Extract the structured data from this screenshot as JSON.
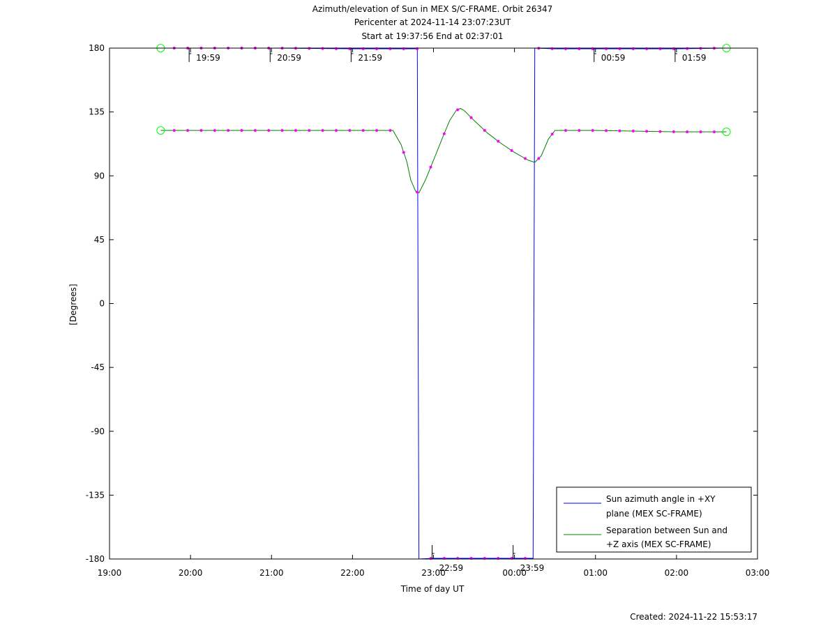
{
  "chart_data": {
    "type": "line",
    "title_lines": [
      "Azimuth/elevation of Sun in MEX S/C-FRAME.  Orbit 26347",
      "Pericenter at 2024-11-14 23:07:23UT",
      "Start at 19:37:56 End at 02:37:01"
    ],
    "xlabel": "Time of day UT",
    "ylabel": "[Degrees]",
    "footer": "Created: 2024-11-22 15:53:17",
    "x_unit": "hours after 19:00 UT",
    "xlim": [
      0,
      8
    ],
    "ylim": [
      -180,
      180
    ],
    "x_ticks": [
      {
        "v": 0,
        "label": "19:00"
      },
      {
        "v": 1,
        "label": "20:00"
      },
      {
        "v": 2,
        "label": "21:00"
      },
      {
        "v": 3,
        "label": "22:00"
      },
      {
        "v": 4,
        "label": "23:00"
      },
      {
        "v": 5,
        "label": "00:00"
      },
      {
        "v": 6,
        "label": "01:00"
      },
      {
        "v": 7,
        "label": "02:00"
      },
      {
        "v": 8,
        "label": "03:00"
      }
    ],
    "y_ticks": [
      {
        "v": 180,
        "label": "180"
      },
      {
        "v": 135,
        "label": "135"
      },
      {
        "v": 90,
        "label": "90"
      },
      {
        "v": 45,
        "label": "45"
      },
      {
        "v": 0,
        "label": "0"
      },
      {
        "v": -45,
        "label": "-45"
      },
      {
        "v": -90,
        "label": "-90"
      },
      {
        "v": -135,
        "label": "-135"
      },
      {
        "v": -180,
        "label": "-180"
      }
    ],
    "time_annotations": [
      {
        "x": 0.983,
        "y": 180,
        "label": "19:59"
      },
      {
        "x": 1.983,
        "y": 180,
        "label": "20:59"
      },
      {
        "x": 2.983,
        "y": 180,
        "label": "21:59"
      },
      {
        "x": 3.983,
        "y": -180,
        "label": "22:59"
      },
      {
        "x": 4.983,
        "y": -180,
        "label": "23:59"
      },
      {
        "x": 5.983,
        "y": 180,
        "label": "00:59"
      },
      {
        "x": 6.983,
        "y": 180,
        "label": "01:59"
      }
    ],
    "series": [
      {
        "name": "Sun azimuth angle in +XY plane (MEX SC-FRAME)",
        "legend_lines": [
          "Sun azimuth angle in +XY",
          "plane (MEX SC-FRAME)"
        ],
        "color": "#0000ff",
        "x": [
          0.632,
          1.0,
          2.0,
          3.0,
          3.5,
          3.8,
          3.81,
          3.82,
          4.0,
          4.5,
          5.0,
          5.23,
          5.24,
          5.25,
          5.5,
          6.0,
          7.0,
          7.617
        ],
        "y": [
          180,
          180,
          180,
          179.5,
          179.5,
          179.5,
          0,
          -180,
          -179.5,
          -179.5,
          -179.5,
          -179.5,
          0,
          180,
          179.5,
          179.5,
          179.5,
          180
        ]
      },
      {
        "name": "Separation between Sun and +Z axis (MEX SC-FRAME)",
        "legend_lines": [
          "Separation between Sun and",
          "+Z axis (MEX SC-FRAME)"
        ],
        "color": "#008000",
        "x": [
          0.632,
          1.0,
          2.0,
          3.0,
          3.5,
          3.6,
          3.67,
          3.72,
          3.78,
          3.82,
          3.9,
          4.0,
          4.12,
          4.2,
          4.28,
          4.33,
          4.38,
          4.5,
          4.67,
          4.83,
          5.0,
          5.17,
          5.25,
          5.33,
          5.42,
          5.5,
          6.0,
          7.0,
          7.617
        ],
        "y": [
          122,
          122,
          122,
          122,
          122,
          112,
          100,
          87,
          79,
          78,
          87,
          101,
          118,
          129,
          136,
          137.5,
          136,
          129,
          120,
          113,
          106.5,
          101,
          99.5,
          104,
          116,
          122,
          122,
          121,
          121
        ]
      }
    ],
    "marker_color": "#ff00ff",
    "endpoint_marker_color": "#00ff00",
    "legend_location": "lower-right"
  }
}
